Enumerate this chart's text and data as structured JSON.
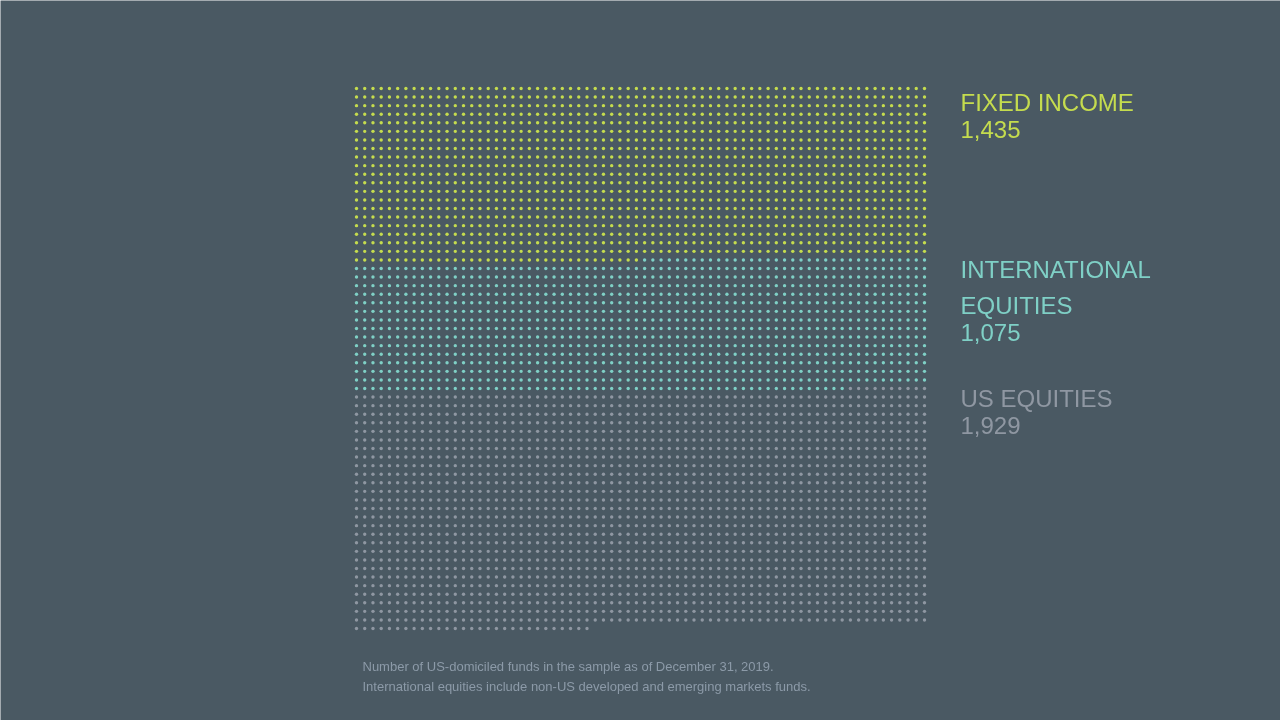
{
  "chart_data": {
    "type": "other",
    "categories": [
      "FIXED INCOME",
      "INTERNATIONAL\nEQUITIES",
      "US EQUITIES"
    ],
    "values": [
      1435,
      1075,
      1929
    ],
    "value_labels": [
      "1,435",
      "1,075",
      "1,929"
    ],
    "colors": [
      "#c5dc4e",
      "#7fd0c6",
      "#8f97a2"
    ],
    "annotations": [
      "Number of US-domiciled funds in the sample as of December 31, 2019.",
      "International equities include non-US developed and emerging markets funds."
    ]
  }
}
